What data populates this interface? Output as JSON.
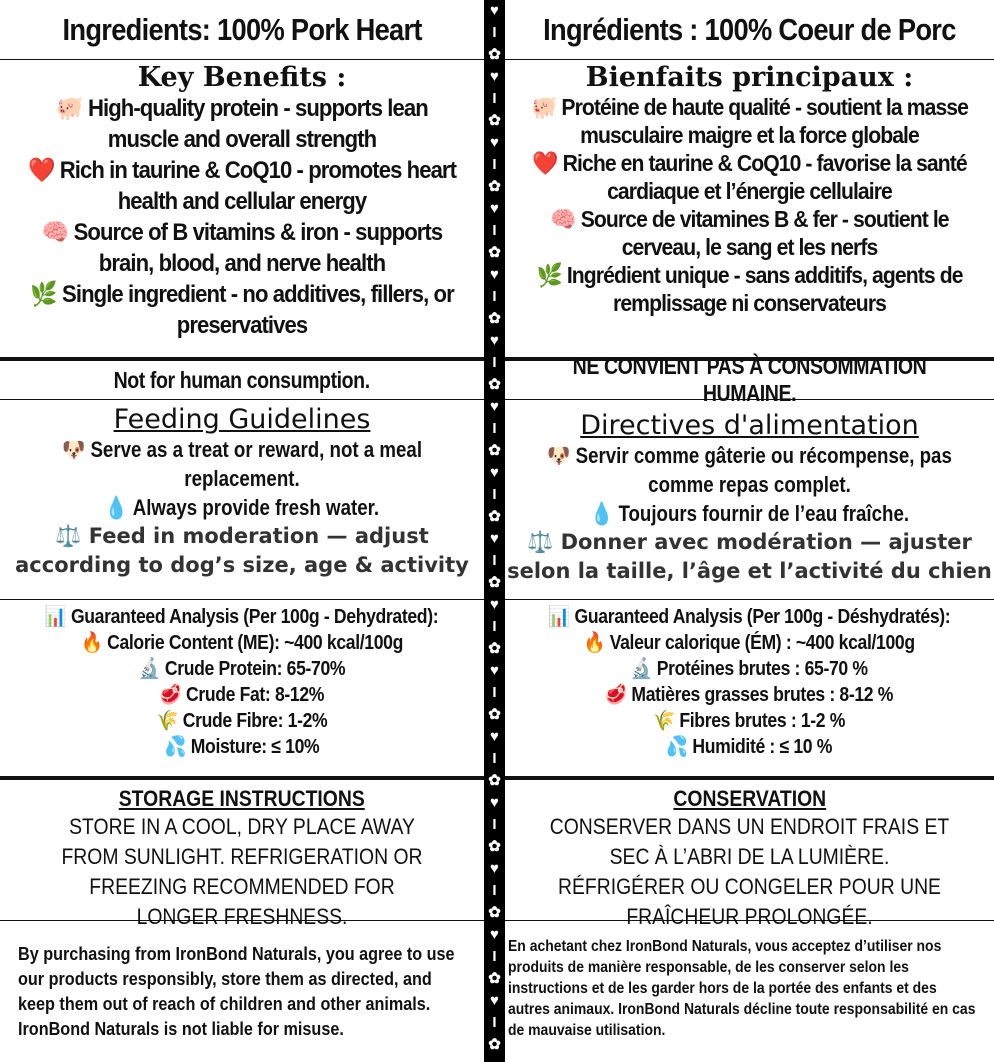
{
  "strip_icons": [
    "heart-icon",
    "bone-icon",
    "paw-icon"
  ],
  "en": {
    "ingredients": "Ingredients: 100% Pork Heart",
    "benefits_title": "Key Benefits :",
    "benefits": [
      {
        "icon": "🐖",
        "text": "High-quality protein - supports lean muscle and overall strength"
      },
      {
        "icon": "❤️",
        "text": "Rich in taurine & CoQ10 - promotes heart health and cellular energy"
      },
      {
        "icon": "🧠",
        "text": "Source of B vitamins & iron - supports brain, blood, and nerve health"
      },
      {
        "icon": "🌿",
        "text": "Single ingredient - no additives, fillers, or preservatives"
      }
    ],
    "warning": "Not for human consumption.",
    "feeding_title": "Feeding Guidelines",
    "feeding": [
      {
        "icon": "🐶",
        "text": "Serve as a treat or reward, not a meal replacement."
      },
      {
        "icon": "💧",
        "text": "Always provide fresh water."
      },
      {
        "icon": "⚖️",
        "text": "Feed in moderation — adjust according to dog’s size, age & activity"
      }
    ],
    "analysis_title": "Guaranteed Analysis (Per 100g - Dehydrated):",
    "analysis_icon": "📊",
    "analysis": [
      {
        "icon": "🔥",
        "text": "Calorie Content (ME): ~400 kcal/100g"
      },
      {
        "icon": "🔬",
        "text": "Crude Protein: 65-70%"
      },
      {
        "icon": "🥩",
        "text": "Crude Fat: 8-12%"
      },
      {
        "icon": "🌾",
        "text": "Crude Fibre: 1-2%"
      },
      {
        "icon": "💦",
        "text": "Moisture: ≤ 10%"
      }
    ],
    "storage_title": "STORAGE INSTRUCTIONS",
    "storage": "STORE IN A COOL, DRY PLACE AWAY FROM SUNLIGHT. REFRIGERATION OR FREEZING RECOMMENDED FOR LONGER FRESHNESS.",
    "disclaimer": "By purchasing from IronBond Naturals, you agree to use our products responsibly, store them as directed, and keep them out of reach of children and other animals. IronBond Naturals is not liable for misuse."
  },
  "fr": {
    "ingredients": "Ingrédients : 100%  Coeur de Porc",
    "benefits_title": "Bienfaits principaux :",
    "benefits": [
      {
        "icon": "🐖",
        "text": "Protéine de haute qualité - soutient la masse musculaire maigre et la force globale"
      },
      {
        "icon": "❤️",
        "text": "Riche en taurine & CoQ10 - favorise la santé cardiaque et l’énergie cellulaire"
      },
      {
        "icon": "🧠",
        "text": "Source de vitamines B & fer - soutient le cerveau, le sang et les nerfs"
      },
      {
        "icon": "🌿",
        "text": "Ingrédient unique - sans additifs, agents de remplissage ni conservateurs"
      }
    ],
    "warning": "NE CONVIENT PAS À CONSOMMATION HUMAINE.",
    "feeding_title": "Directives d'alimentation",
    "feeding": [
      {
        "icon": "🐶",
        "text": "Servir comme gâterie ou récompense, pas comme repas complet."
      },
      {
        "icon": "💧",
        "text": "Toujours fournir de l’eau fraîche."
      },
      {
        "icon": "⚖️",
        "text": "Donner avec modération — ajuster selon la taille, l’âge et l’activité du chien"
      }
    ],
    "analysis_title": "Guaranteed Analysis (Per 100g - Déshydratés):",
    "analysis_icon": "📊",
    "analysis": [
      {
        "icon": "🔥",
        "text": "Valeur calorique (ÉM) : ~400 kcal/100g"
      },
      {
        "icon": "🔬",
        "text": "Protéines brutes : 65-70 %"
      },
      {
        "icon": "🥩",
        "text": "Matières grasses brutes : 8-12 %"
      },
      {
        "icon": "🌾",
        "text": "Fibres brutes : 1-2 %"
      },
      {
        "icon": "💦",
        "text": "Humidité : ≤ 10 %"
      }
    ],
    "storage_title": "CONSERVATION",
    "storage": "CONSERVER DANS UN ENDROIT FRAIS ET SEC À L’ABRI DE LA LUMIÈRE. RÉFRIGÉRER OU CONGELER POUR UNE FRAÎCHEUR PROLONGÉE.",
    "disclaimer": "En achetant chez IronBond Naturals, vous acceptez d’utiliser nos produits de manière responsable, de les conserver selon les instructions et de les garder hors de la portée des enfants et des autres animaux. IronBond Naturals décline toute responsabilité en cas de mauvaise utilisation."
  }
}
